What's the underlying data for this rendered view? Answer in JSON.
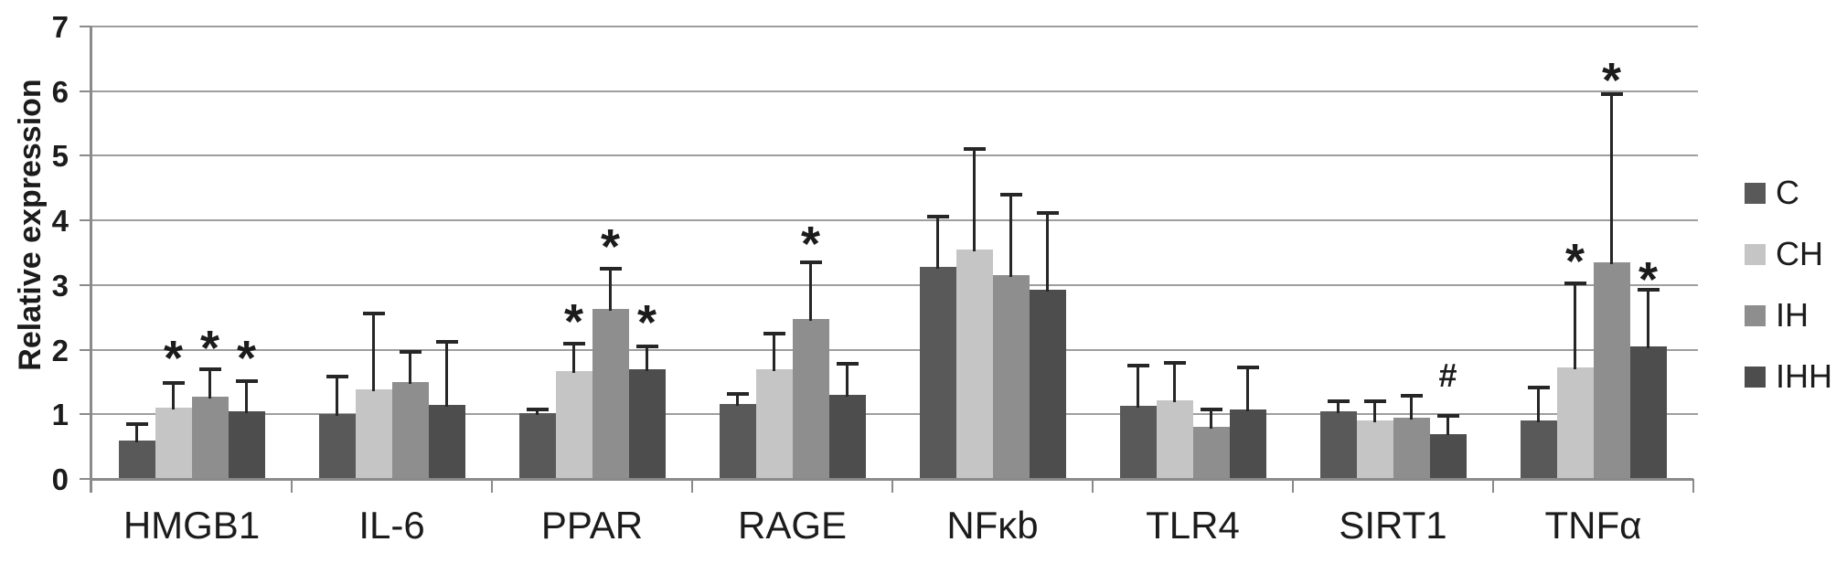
{
  "chart_data": {
    "type": "bar",
    "title": "",
    "ylabel": "Relative expression",
    "xlabel": "",
    "ylim": [
      0,
      7
    ],
    "y_ticks": [
      "0",
      "1",
      "2",
      "3",
      "4",
      "5",
      "6",
      "7"
    ],
    "grid": true,
    "legend_position": "right",
    "categories": [
      "HMGB1",
      "IL-6",
      "PPAR",
      "RAGE",
      "NFκb",
      "TLR4",
      "SIRT1",
      "TNFα"
    ],
    "series": [
      {
        "name": "C",
        "color": "#595959",
        "values": [
          0.6,
          1.0,
          1.02,
          1.16,
          3.28,
          1.13,
          1.05,
          0.9
        ],
        "errors_plus": [
          0.25,
          0.58,
          0.06,
          0.16,
          0.78,
          0.62,
          0.15,
          0.52
        ]
      },
      {
        "name": "CH",
        "color": "#c5c5c5",
        "values": [
          1.1,
          1.38,
          1.67,
          1.7,
          3.55,
          1.22,
          0.9,
          1.72
        ],
        "errors_plus": [
          0.38,
          1.18,
          0.43,
          0.55,
          1.55,
          0.57,
          0.3,
          1.3
        ]
      },
      {
        "name": "IH",
        "color": "#8e8e8e",
        "values": [
          1.27,
          1.5,
          2.63,
          2.47,
          3.15,
          0.8,
          0.95,
          3.35
        ],
        "errors_plus": [
          0.42,
          0.47,
          0.62,
          0.88,
          1.25,
          0.28,
          0.33,
          2.6
        ]
      },
      {
        "name": "IHH",
        "color": "#4d4d4d",
        "values": [
          1.05,
          1.15,
          1.7,
          1.3,
          2.93,
          1.07,
          0.7,
          2.05
        ],
        "errors_plus": [
          0.46,
          0.97,
          0.35,
          0.48,
          1.18,
          0.65,
          0.28,
          0.88
        ]
      }
    ],
    "annotations": [
      {
        "category": "HMGB1",
        "series": "CH",
        "symbol": "*",
        "y": 2.05
      },
      {
        "category": "HMGB1",
        "series": "IH",
        "symbol": "*",
        "y": 2.2
      },
      {
        "category": "HMGB1",
        "series": "IHH",
        "symbol": "*",
        "y": 2.05
      },
      {
        "category": "PPAR",
        "series": "CH",
        "symbol": "*",
        "y": 2.62
      },
      {
        "category": "PPAR",
        "series": "IH",
        "symbol": "*",
        "y": 3.78
      },
      {
        "category": "PPAR",
        "series": "IHH",
        "symbol": "*",
        "y": 2.6
      },
      {
        "category": "RAGE",
        "series": "IH",
        "symbol": "*",
        "y": 3.82
      },
      {
        "category": "SIRT1",
        "series": "IHH",
        "symbol": "#",
        "y": 1.6
      },
      {
        "category": "TNFα",
        "series": "CH",
        "symbol": "*",
        "y": 3.55
      },
      {
        "category": "TNFα",
        "series": "IH",
        "symbol": "*",
        "y": 6.35
      },
      {
        "category": "TNFα",
        "series": "IHH",
        "symbol": "*",
        "y": 3.27
      }
    ]
  },
  "colors": {
    "gridline": "#9e9e9e",
    "axis": "#8a8a8a",
    "error_bar": "#262626",
    "text": "#1c1c1c",
    "background": "#ffffff"
  }
}
